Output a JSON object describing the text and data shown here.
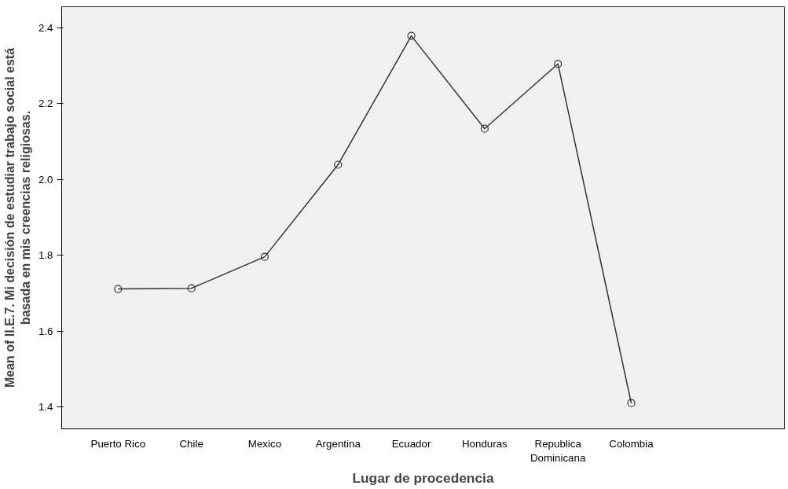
{
  "chart_data": {
    "type": "line",
    "xlabel": "Lugar de procedencia",
    "ylabel": "Mean of II.E.7. Mi decisión de estudiar trabajo social está basada en mis creencias religiosas.",
    "categories": [
      "Puerto Rico",
      "Chile",
      "Mexico",
      "Argentina",
      "Ecuador",
      "Honduras",
      "Republica Dominicana",
      "Colombia"
    ],
    "series": [
      {
        "color": "#333333",
        "values": [
          1.711,
          1.713,
          1.796,
          2.039,
          2.379,
          2.134,
          2.305,
          1.41
        ]
      }
    ],
    "ylim": [
      1.342,
      2.456
    ],
    "yticks": [
      1.4,
      1.6,
      1.8,
      {
        "value": 2,
        "label": "2.0"
      },
      2.2,
      2.4
    ],
    "marker": "circle",
    "line_style": "solid",
    "grid": false
  }
}
